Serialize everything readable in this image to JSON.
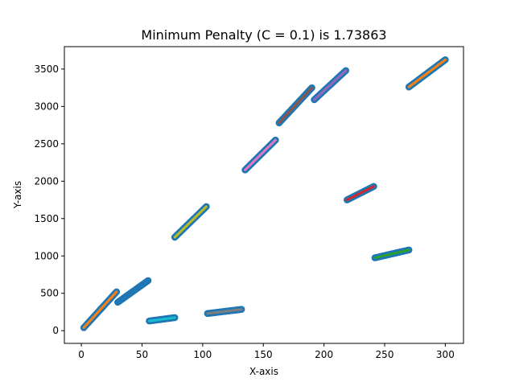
{
  "chart_data": {
    "type": "scatter",
    "title": "Minimum Penalty (C = 0.1) is 1.73863",
    "xlabel": "X-axis",
    "ylabel": "Y-axis",
    "xlim": [
      -14,
      315
    ],
    "ylim": [
      -170,
      3800
    ],
    "xticks": [
      0,
      50,
      100,
      150,
      200,
      250,
      300
    ],
    "yticks": [
      0,
      500,
      1000,
      1500,
      2000,
      2500,
      3000,
      3500
    ],
    "grid": false,
    "legend": "none",
    "point_color": "#1f77b4",
    "series": [
      {
        "x_start": 2,
        "x_end": 29,
        "y_start": 40,
        "y_end": 520,
        "color": "#ff7f0e"
      },
      {
        "x_start": 30,
        "x_end": 55,
        "y_start": 380,
        "y_end": 670,
        "color": "#1f77b4"
      },
      {
        "x_start": 56,
        "x_end": 77,
        "y_start": 130,
        "y_end": 175,
        "color": "#17becf"
      },
      {
        "x_start": 77,
        "x_end": 103,
        "y_start": 1250,
        "y_end": 1660,
        "color": "#bcbd22"
      },
      {
        "x_start": 104,
        "x_end": 132,
        "y_start": 230,
        "y_end": 285,
        "color": "#7f7f7f"
      },
      {
        "x_start": 135,
        "x_end": 160,
        "y_start": 2150,
        "y_end": 2550,
        "color": "#e377c2"
      },
      {
        "x_start": 163,
        "x_end": 190,
        "y_start": 2780,
        "y_end": 3250,
        "color": "#8c564b"
      },
      {
        "x_start": 192,
        "x_end": 218,
        "y_start": 3090,
        "y_end": 3480,
        "color": "#9467bd"
      },
      {
        "x_start": 219,
        "x_end": 241,
        "y_start": 1750,
        "y_end": 1930,
        "color": "#d62728"
      },
      {
        "x_start": 242,
        "x_end": 270,
        "y_start": 975,
        "y_end": 1080,
        "color": "#2ca02c"
      },
      {
        "x_start": 270,
        "x_end": 300,
        "y_start": 3260,
        "y_end": 3625,
        "color": "#ff7f0e"
      }
    ]
  }
}
